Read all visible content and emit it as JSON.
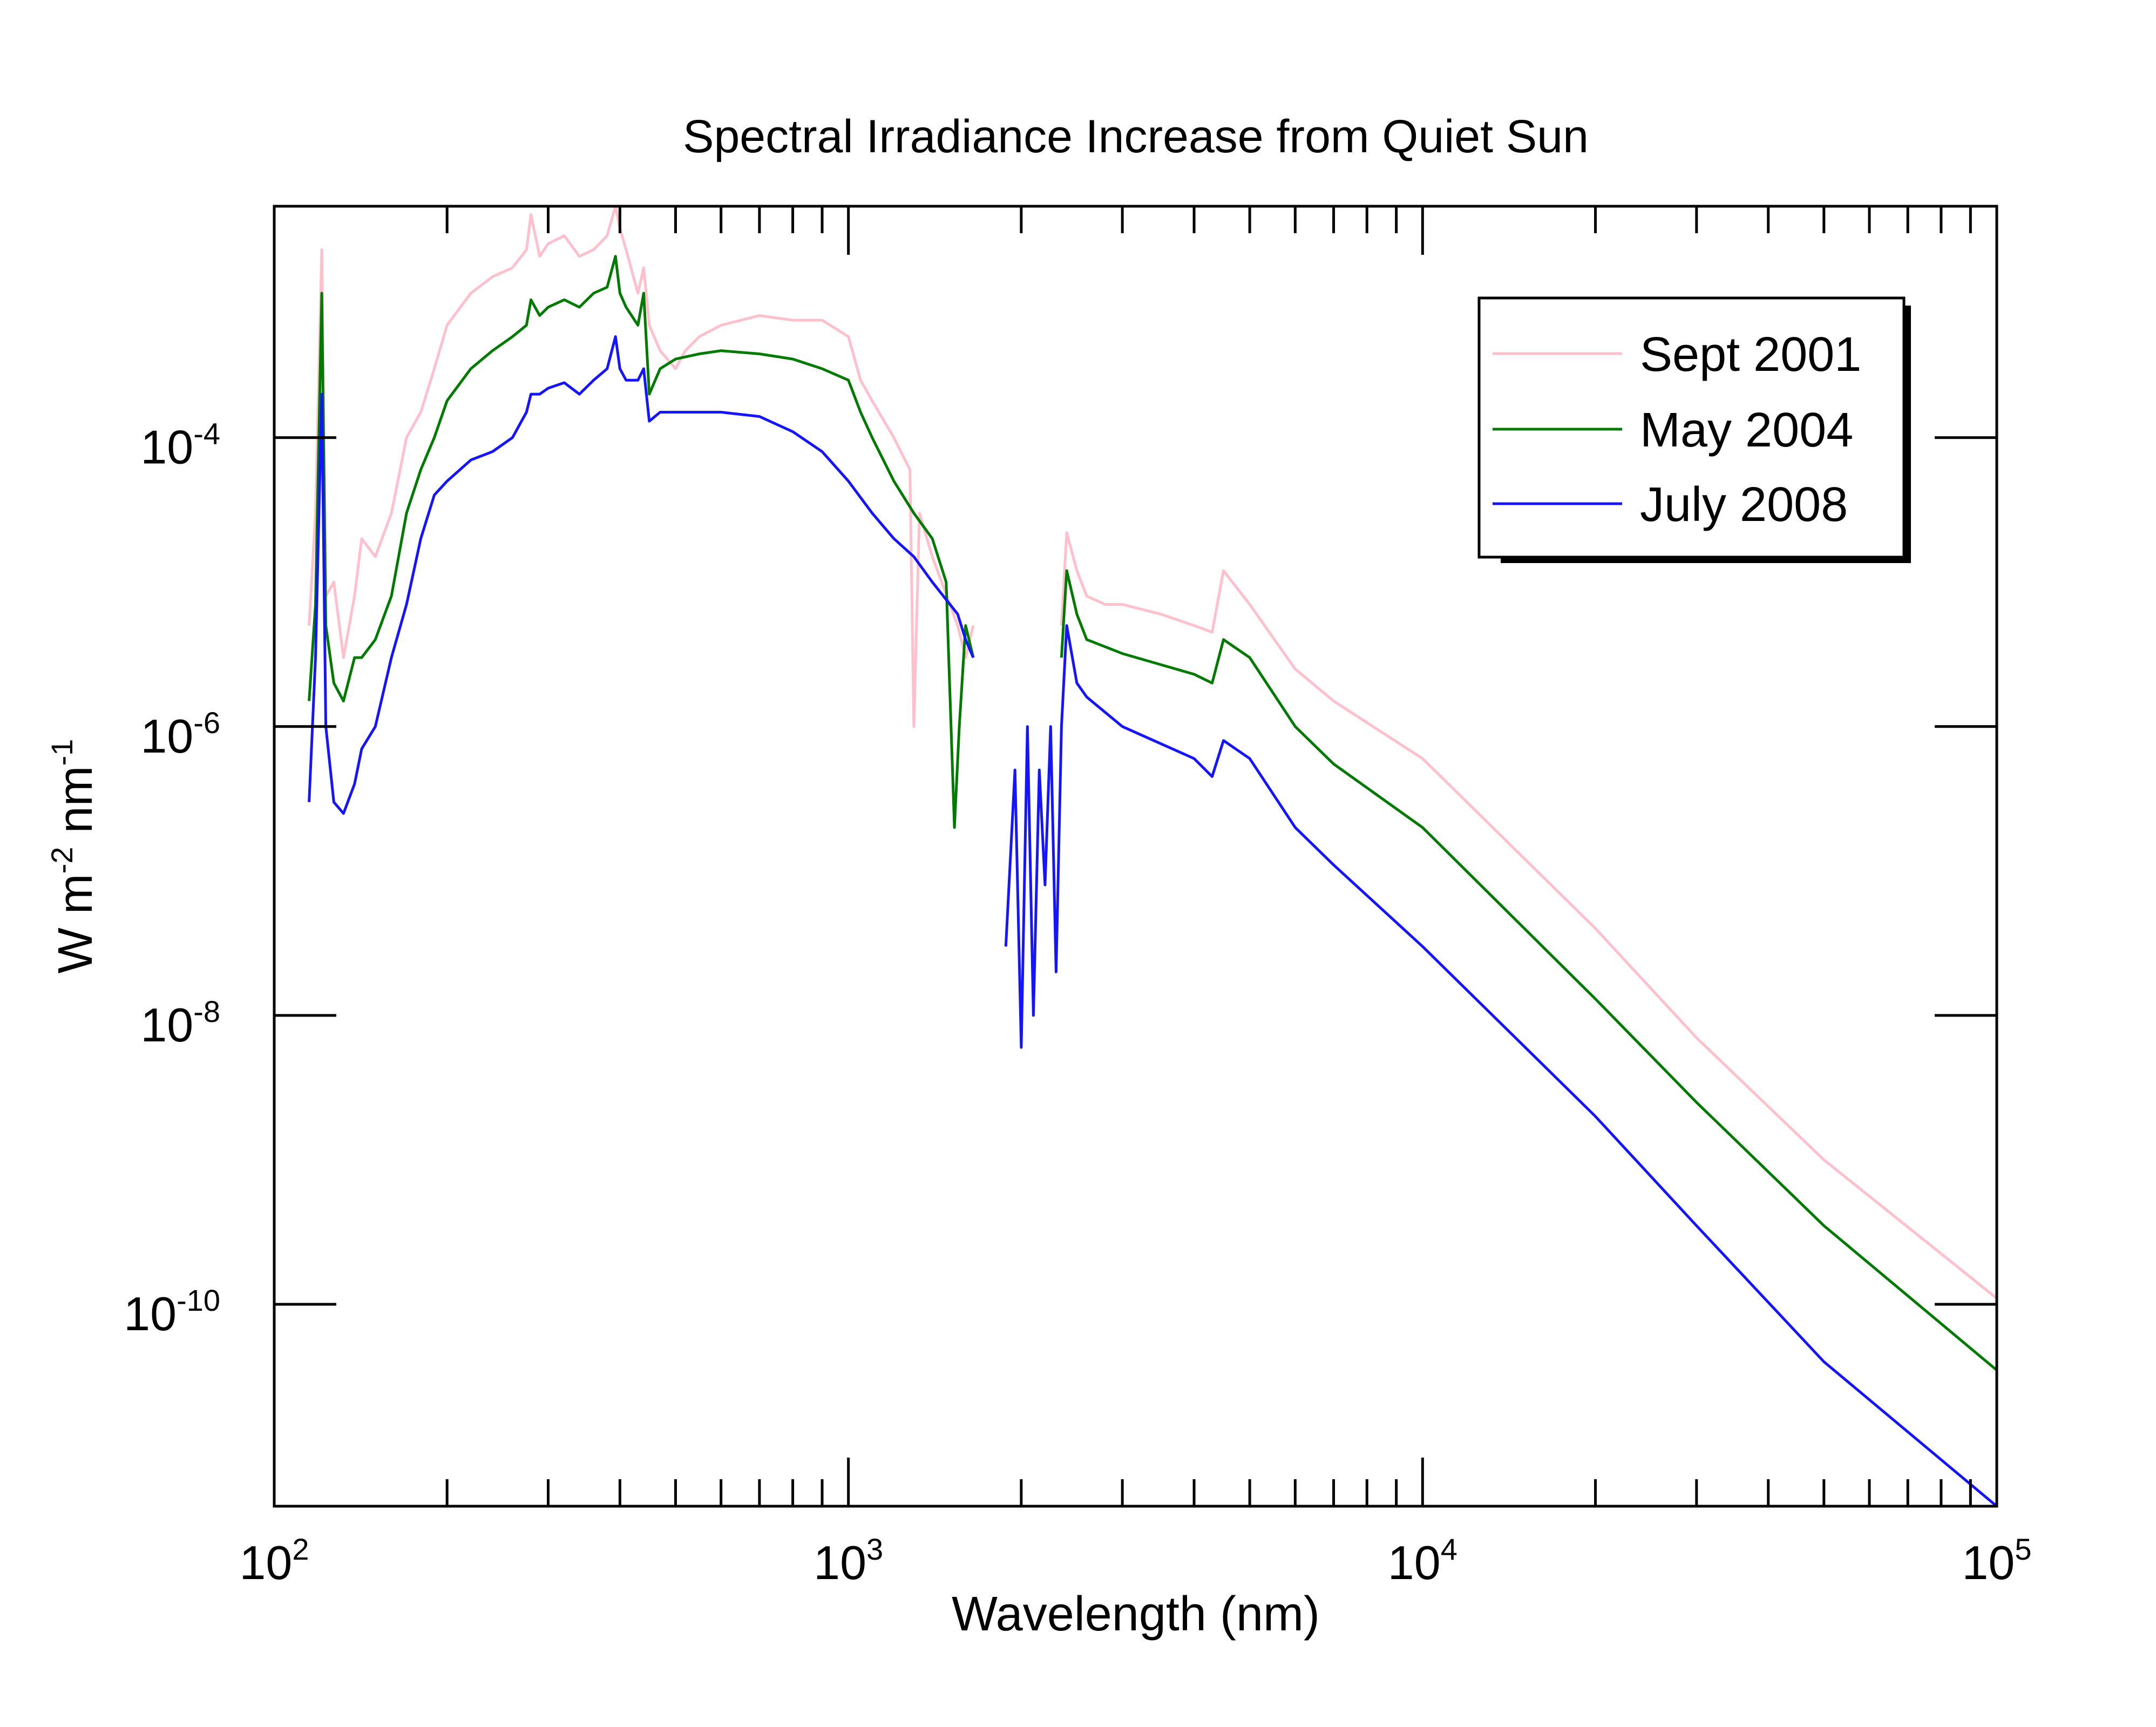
{
  "chart_data": {
    "type": "line",
    "title": "Spectral Irradiance Increase from Quiet Sun",
    "xlabel": "Wavelength (nm)",
    "ylabel_parts": [
      "W m",
      "-2",
      " nm",
      "-1"
    ],
    "x_scale": "log",
    "y_scale": "log",
    "xlim": [
      100,
      100000
    ],
    "ylim": [
      4e-12,
      0.004
    ],
    "x_ticks": [
      {
        "base": "10",
        "exp": "2",
        "value": 100
      },
      {
        "base": "10",
        "exp": "3",
        "value": 1000
      },
      {
        "base": "10",
        "exp": "4",
        "value": 10000
      },
      {
        "base": "10",
        "exp": "5",
        "value": 100000
      }
    ],
    "y_ticks": [
      {
        "base": "10",
        "exp": "-4",
        "value": 0.0001
      },
      {
        "base": "10",
        "exp": "-6",
        "value": 1e-06
      },
      {
        "base": "10",
        "exp": "-8",
        "value": 1e-08
      },
      {
        "base": "10",
        "exp": "-10",
        "value": 1e-10
      }
    ],
    "grid": false,
    "legend_position": "top-right",
    "series": [
      {
        "name": "Sept 2001",
        "color": "#ffc0cb",
        "segments": [
          [
            [
              115,
              5e-06
            ],
            [
              118,
              3e-05
            ],
            [
              121,
              0.002
            ],
            [
              123,
              8e-06
            ],
            [
              127,
              1e-05
            ],
            [
              132,
              3e-06
            ],
            [
              138,
              8e-06
            ],
            [
              142,
              2e-05
            ],
            [
              150,
              1.5e-05
            ],
            [
              160,
              3e-05
            ],
            [
              170,
              0.0001
            ],
            [
              180,
              0.00015
            ],
            [
              190,
              0.0003
            ],
            [
              200,
              0.0006
            ],
            [
              220,
              0.001
            ],
            [
              240,
              0.0013
            ],
            [
              260,
              0.0015
            ],
            [
              275,
              0.002
            ],
            [
              280,
              0.0035
            ],
            [
              290,
              0.0018
            ],
            [
              300,
              0.0022
            ],
            [
              320,
              0.0025
            ],
            [
              340,
              0.0018
            ],
            [
              360,
              0.002
            ],
            [
              380,
              0.0025
            ],
            [
              393,
              0.004
            ],
            [
              400,
              0.0028
            ],
            [
              410,
              0.002
            ],
            [
              430,
              0.001
            ],
            [
              440,
              0.0015
            ],
            [
              450,
              0.0006
            ],
            [
              470,
              0.0004
            ]
          ],
          [
            [
              470,
              0.0004
            ],
            [
              500,
              0.0003
            ],
            [
              520,
              0.0004
            ],
            [
              550,
              0.0005
            ],
            [
              600,
              0.0006
            ],
            [
              700,
              0.0007
            ],
            [
              800,
              0.00065
            ],
            [
              900,
              0.00065
            ],
            [
              1000,
              0.0005
            ],
            [
              1050,
              0.00025
            ],
            [
              1100,
              0.00018
            ],
            [
              1200,
              0.0001
            ],
            [
              1280,
              6e-05
            ],
            [
              1300,
              1e-06
            ],
            [
              1330,
              3e-05
            ],
            [
              1400,
              1.5e-05
            ],
            [
              1550,
              5e-06
            ],
            [
              1600,
              3e-06
            ],
            [
              1650,
              5e-06
            ]
          ],
          [
            [
              2350,
              5e-06
            ],
            [
              2400,
              2.2e-05
            ],
            [
              2500,
              1.2e-05
            ],
            [
              2600,
              8e-06
            ],
            [
              2800,
              7e-06
            ],
            [
              3000,
              7e-06
            ],
            [
              3500,
              6e-06
            ],
            [
              4000,
              5e-06
            ],
            [
              4300,
              4.5e-06
            ],
            [
              4500,
              1.2e-05
            ],
            [
              5000,
              7e-06
            ],
            [
              6000,
              2.5e-06
            ],
            [
              7000,
              1.5e-06
            ],
            [
              10000,
              6e-07
            ],
            [
              20000,
              4e-08
            ],
            [
              30000,
              7e-09
            ],
            [
              50000,
              1e-09
            ],
            [
              100000,
              1.1e-10
            ]
          ]
        ]
      },
      {
        "name": "May 2004",
        "color": "#007a00",
        "segments": [
          [
            [
              115,
              1.5e-06
            ],
            [
              118,
              7e-06
            ],
            [
              121,
              0.001
            ],
            [
              123,
              5e-06
            ],
            [
              127,
              2e-06
            ],
            [
              132,
              1.5e-06
            ],
            [
              138,
              3e-06
            ],
            [
              142,
              3e-06
            ],
            [
              150,
              4e-06
            ],
            [
              160,
              8e-06
            ],
            [
              170,
              3e-05
            ],
            [
              180,
              6e-05
            ],
            [
              190,
              0.0001
            ],
            [
              200,
              0.00018
            ],
            [
              220,
              0.0003
            ],
            [
              240,
              0.0004
            ],
            [
              260,
              0.0005
            ],
            [
              275,
              0.0006
            ],
            [
              280,
              0.0009
            ],
            [
              290,
              0.0007
            ],
            [
              300,
              0.0008
            ],
            [
              320,
              0.0009
            ],
            [
              340,
              0.0008
            ],
            [
              360,
              0.001
            ],
            [
              380,
              0.0011
            ],
            [
              393,
              0.0018
            ],
            [
              400,
              0.001
            ],
            [
              410,
              0.0008
            ],
            [
              430,
              0.0006
            ],
            [
              440,
              0.001
            ],
            [
              450,
              0.0002
            ],
            [
              470,
              0.0003
            ],
            [
              500,
              0.00035
            ],
            [
              550,
              0.00038
            ],
            [
              600,
              0.0004
            ],
            [
              700,
              0.00038
            ],
            [
              800,
              0.00035
            ],
            [
              900,
              0.0003
            ],
            [
              1000,
              0.00025
            ],
            [
              1050,
              0.00015
            ],
            [
              1100,
              0.0001
            ],
            [
              1200,
              5e-05
            ],
            [
              1300,
              3e-05
            ],
            [
              1400,
              2e-05
            ],
            [
              1480,
              1e-05
            ],
            [
              1530,
              2e-07
            ],
            [
              1560,
              1e-06
            ],
            [
              1600,
              5e-06
            ],
            [
              1650,
              3e-06
            ]
          ],
          [
            [
              2350,
              3e-06
            ],
            [
              2400,
              1.2e-05
            ],
            [
              2500,
              6e-06
            ],
            [
              2600,
              4e-06
            ],
            [
              3000,
              3.2e-06
            ],
            [
              4000,
              2.3e-06
            ],
            [
              4300,
              2e-06
            ],
            [
              4500,
              4e-06
            ],
            [
              5000,
              3e-06
            ],
            [
              6000,
              1e-06
            ],
            [
              7000,
              5.5e-07
            ],
            [
              10000,
              2e-07
            ],
            [
              20000,
              1.3e-08
            ],
            [
              30000,
              2.5e-09
            ],
            [
              50000,
              3.5e-10
            ],
            [
              100000,
              3.5e-11
            ]
          ]
        ]
      },
      {
        "name": "July 2008",
        "color": "#1414ff",
        "segments": [
          [
            [
              115,
              3e-07
            ],
            [
              118,
              3e-06
            ],
            [
              121,
              0.0002
            ],
            [
              123,
              1e-06
            ],
            [
              127,
              3e-07
            ],
            [
              132,
              2.5e-07
            ],
            [
              138,
              4e-07
            ],
            [
              142,
              7e-07
            ],
            [
              150,
              1e-06
            ],
            [
              160,
              3e-06
            ],
            [
              170,
              7e-06
            ],
            [
              180,
              2e-05
            ],
            [
              190,
              4e-05
            ],
            [
              200,
              5e-05
            ],
            [
              220,
              7e-05
            ],
            [
              240,
              8e-05
            ],
            [
              260,
              0.0001
            ],
            [
              275,
              0.00015
            ],
            [
              280,
              0.0002
            ],
            [
              290,
              0.0002
            ],
            [
              300,
              0.00022
            ],
            [
              320,
              0.00024
            ],
            [
              340,
              0.0002
            ],
            [
              360,
              0.00025
            ],
            [
              380,
              0.0003
            ],
            [
              393,
              0.0005
            ],
            [
              400,
              0.0003
            ],
            [
              410,
              0.00025
            ],
            [
              430,
              0.00025
            ],
            [
              440,
              0.0003
            ],
            [
              450,
              0.00013
            ],
            [
              470,
              0.00015
            ],
            [
              500,
              0.00015
            ],
            [
              600,
              0.00015
            ],
            [
              700,
              0.00014
            ],
            [
              800,
              0.00011
            ],
            [
              900,
              8e-05
            ],
            [
              1000,
              5e-05
            ],
            [
              1100,
              3e-05
            ],
            [
              1200,
              2e-05
            ],
            [
              1300,
              1.5e-05
            ],
            [
              1400,
              1e-05
            ],
            [
              1550,
              6e-06
            ],
            [
              1600,
              4e-06
            ],
            [
              1650,
              3e-06
            ]
          ],
          [
            [
              1880,
              3e-08
            ],
            [
              1950,
              5e-07
            ],
            [
              2000,
              6e-09
            ],
            [
              2050,
              1e-06
            ],
            [
              2100,
              1e-08
            ],
            [
              2150,
              5e-07
            ],
            [
              2200,
              8e-08
            ],
            [
              2250,
              1e-06
            ],
            [
              2300,
              2e-08
            ],
            [
              2350,
              1e-06
            ],
            [
              2400,
              5e-06
            ],
            [
              2500,
              2e-06
            ],
            [
              2600,
              1.6e-06
            ],
            [
              3000,
              1e-06
            ],
            [
              4000,
              6e-07
            ],
            [
              4300,
              4.5e-07
            ],
            [
              4500,
              8e-07
            ],
            [
              5000,
              6e-07
            ],
            [
              6000,
              2e-07
            ],
            [
              7000,
              1.1e-07
            ],
            [
              10000,
              3e-08
            ],
            [
              20000,
              2e-09
            ],
            [
              30000,
              3.5e-10
            ],
            [
              50000,
              4e-11
            ],
            [
              100000,
              4e-12
            ]
          ]
        ]
      }
    ]
  }
}
